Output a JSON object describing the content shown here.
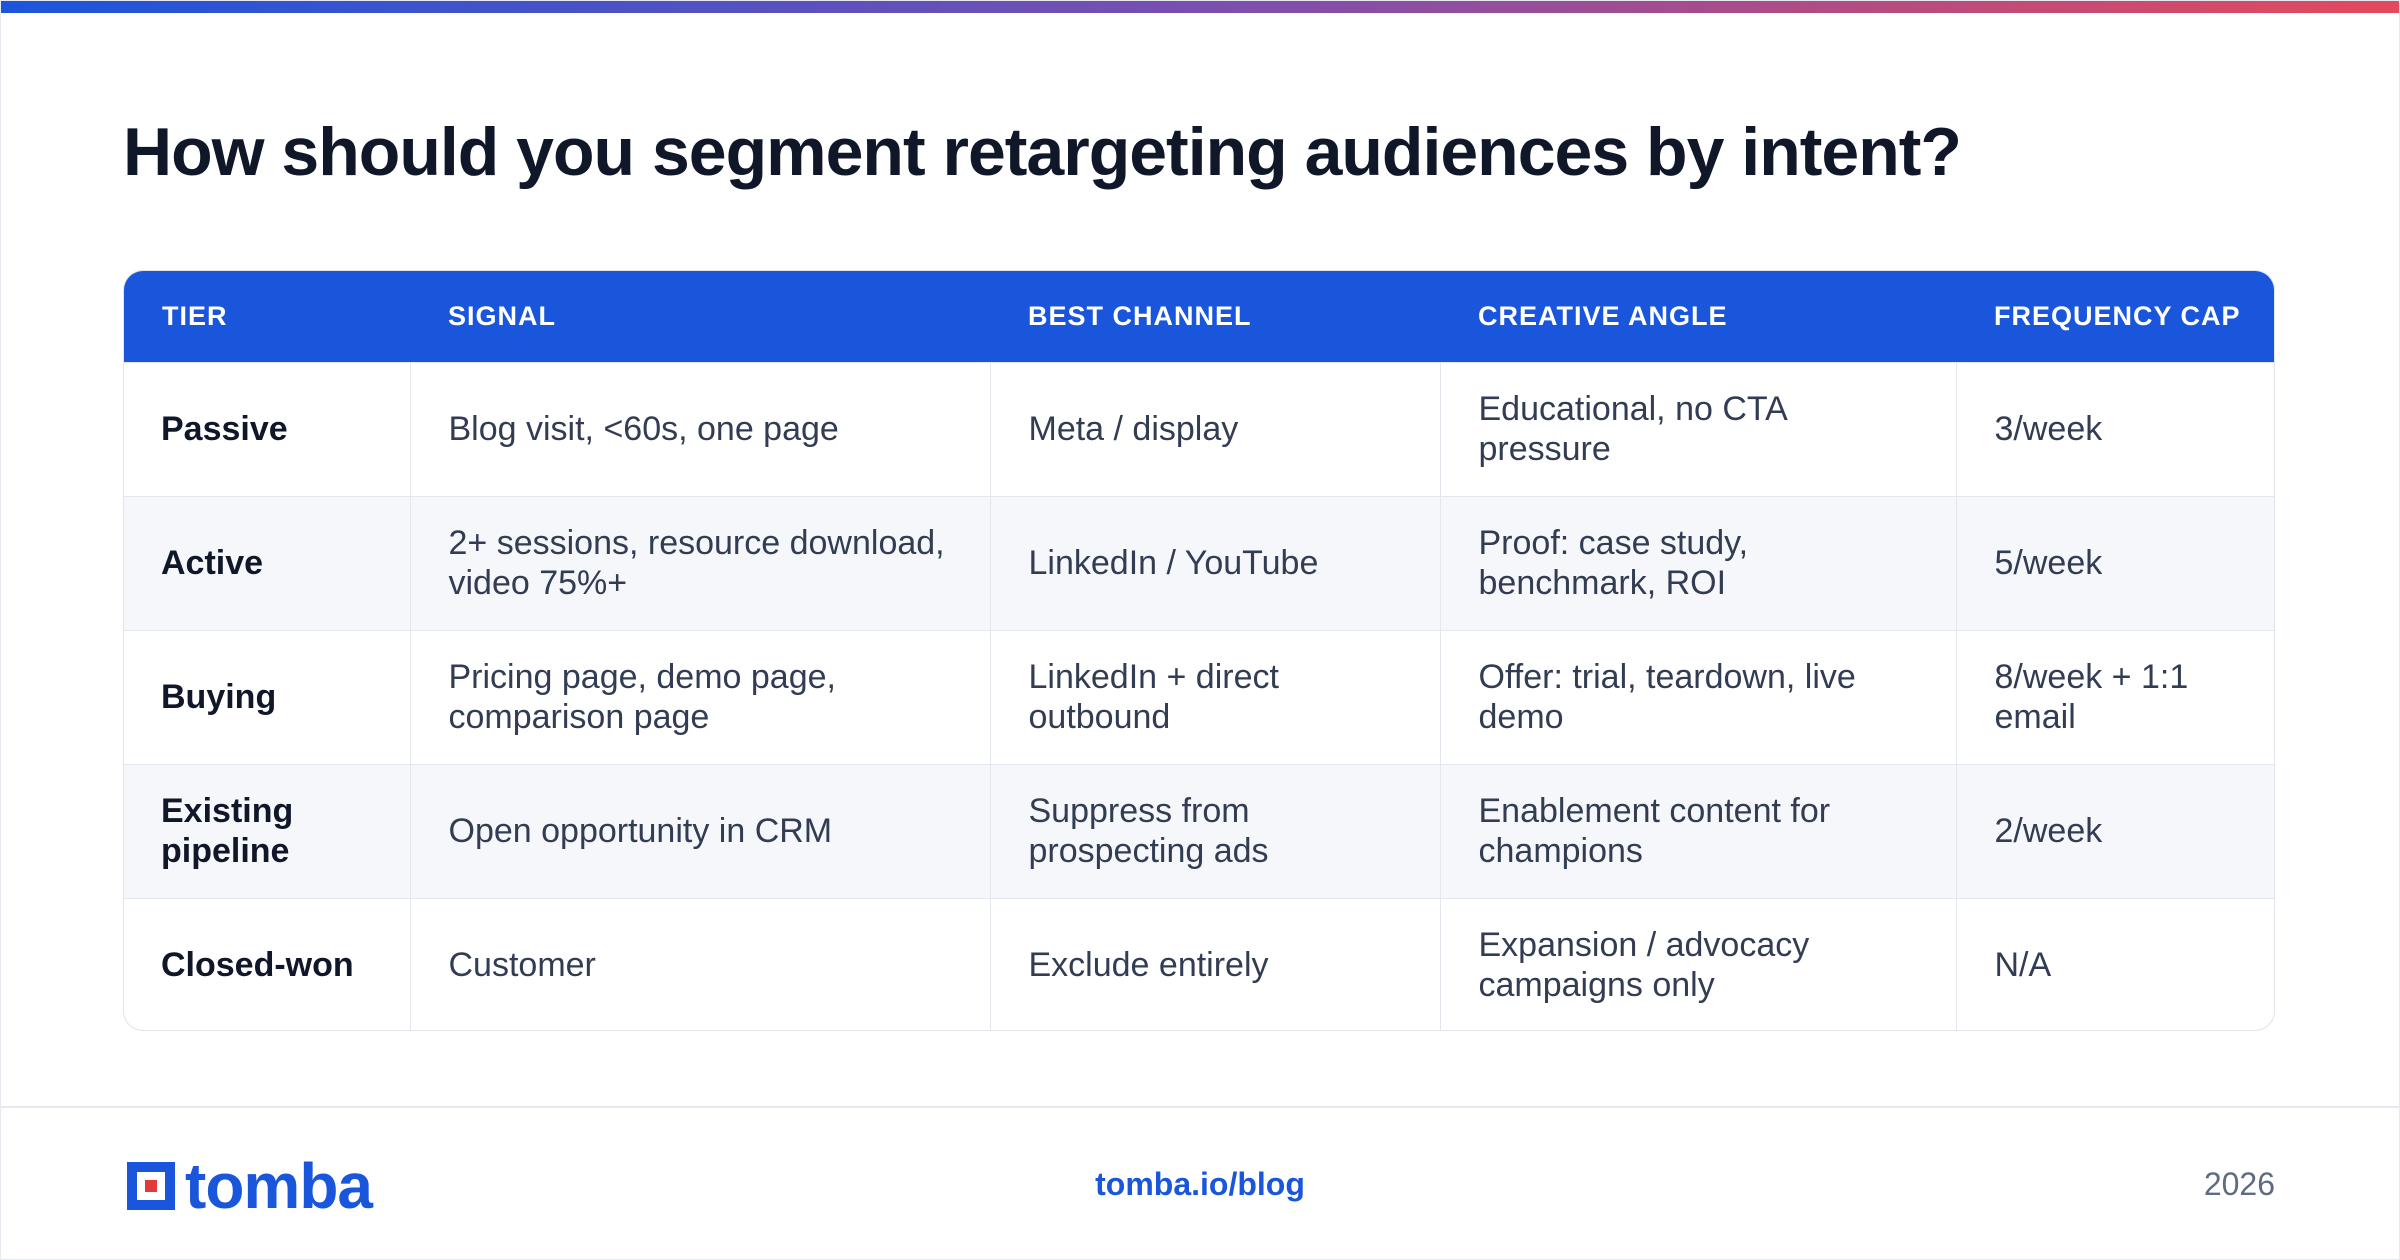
{
  "title": "How should you segment retargeting audiences by intent?",
  "table": {
    "headers": [
      "TIER",
      "SIGNAL",
      "BEST CHANNEL",
      "CREATIVE ANGLE",
      "FREQUENCY CAP"
    ],
    "rows": [
      [
        "Passive",
        "Blog visit, <60s, one page",
        "Meta / display",
        "Educational, no CTA pressure",
        "3/week"
      ],
      [
        "Active",
        "2+ sessions, resource download, video 75%+",
        "LinkedIn / YouTube",
        "Proof: case study, benchmark, ROI",
        "5/week"
      ],
      [
        "Buying",
        "Pricing page, demo page, comparison page",
        "LinkedIn + direct outbound",
        "Offer: trial, teardown, live demo",
        "8/week + 1:1 email"
      ],
      [
        "Existing pipeline",
        "Open opportunity in CRM",
        "Suppress from prospecting ads",
        "Enablement content for champions",
        "2/week"
      ],
      [
        "Closed-won",
        "Customer",
        "Exclude entirely",
        "Expansion / advocacy campaigns only",
        "N/A"
      ]
    ]
  },
  "footer": {
    "logo_text": "tomba",
    "link": "tomba.io/blog",
    "year": "2026"
  },
  "colors": {
    "accent": "#1a56dc",
    "logo_red": "#e23a3a",
    "gradient_start": "#1b55dc",
    "gradient_end": "#e4495c"
  },
  "icons": {
    "logo_mark": "tomba-logo-icon"
  }
}
